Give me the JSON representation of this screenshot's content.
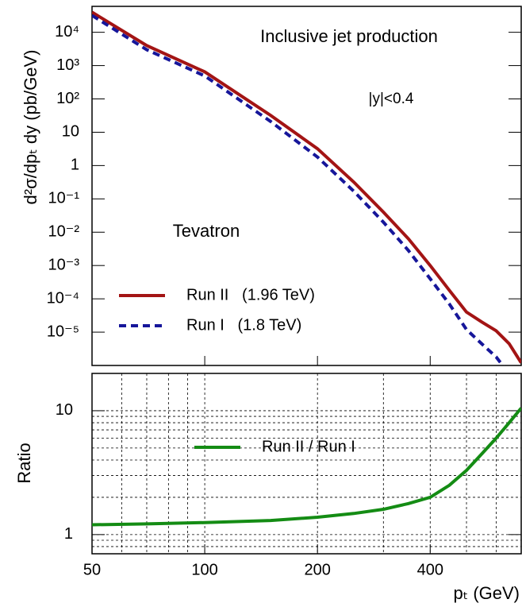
{
  "chart_data": [
    {
      "type": "line",
      "y_label": "d²σ/dpₜ dy  (pb/GeV)",
      "annotations": [
        "Inclusive jet production",
        "|y|<0.4",
        "Tevatron"
      ],
      "x": [
        50,
        70,
        100,
        150,
        200,
        250,
        300,
        350,
        400,
        450,
        500,
        550,
        600,
        650,
        700
      ],
      "series": [
        {
          "name": "Run II   (1.96 TeV)",
          "color": "#a31414",
          "dash": false,
          "values": [
            40000,
            4000,
            650,
            32,
            3.2,
            0.32,
            0.04,
            0.0063,
            0.001,
            0.00018,
            4e-05,
            2e-05,
            1.1e-05,
            4.5e-06,
            1.2e-06
          ]
        },
        {
          "name": "Run I   (1.8 TeV)",
          "color": "#16169a",
          "dash": true,
          "values": [
            32000,
            3000,
            490,
            21,
            1.8,
            0.17,
            0.02,
            0.0028,
            0.0004,
            7e-05,
            1.2e-05,
            4.4e-06,
            1.8e-06,
            5.6e-07,
            null
          ]
        }
      ],
      "xlim": [
        50,
        700
      ],
      "xticks": [
        50,
        100,
        200,
        400
      ],
      "log_x": true,
      "ylim": [
        1e-06,
        60000
      ],
      "log_y": true,
      "yticks": [
        {
          "value": 10000,
          "label": "10⁴"
        },
        {
          "value": 1000,
          "label": "10³"
        },
        {
          "value": 100,
          "label": "10²"
        },
        10,
        1,
        {
          "value": 0.1,
          "label": "10⁻¹"
        },
        {
          "value": 0.01,
          "label": "10⁻²"
        },
        {
          "value": 0.001,
          "label": "10⁻³"
        },
        {
          "value": 0.0001,
          "label": "10⁻⁴"
        },
        {
          "value": 1e-05,
          "label": "10⁻⁵"
        }
      ],
      "grid": false
    },
    {
      "type": "line",
      "y_label": "Ratio",
      "x_label": "pₜ  (GeV)",
      "x": [
        50,
        70,
        100,
        150,
        200,
        250,
        300,
        350,
        400,
        450,
        500,
        550,
        600,
        650,
        700
      ],
      "series": [
        {
          "name": "Run II / Run I",
          "color": "#148c14",
          "dash": false,
          "values": [
            1.2,
            1.22,
            1.25,
            1.3,
            1.38,
            1.48,
            1.6,
            1.78,
            2.0,
            2.5,
            3.3,
            4.5,
            6,
            8,
            10.5
          ]
        }
      ],
      "xlim": [
        50,
        700
      ],
      "xticks": [
        50,
        100,
        200,
        400
      ],
      "log_x": true,
      "x_minor_ticks": [
        60,
        70,
        80,
        90,
        300,
        500,
        600
      ],
      "ylim": [
        0.7,
        20
      ],
      "yticks": [
        1,
        10
      ],
      "log_y": true,
      "y_minor_ticks": [
        0.8,
        0.9,
        2,
        3,
        4,
        5,
        6,
        7,
        8,
        9
      ],
      "grid": true
    }
  ]
}
